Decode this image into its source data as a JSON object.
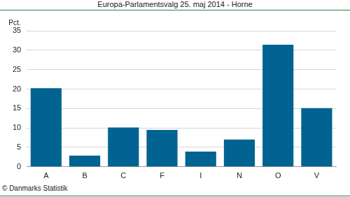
{
  "chart_data": {
    "type": "bar",
    "title": "Europa-Parlamentsvalg 25. maj 2014 - Horne",
    "y_label": "Pct.",
    "source": "© Danmarks Statistik",
    "categories": [
      "A",
      "B",
      "C",
      "F",
      "I",
      "N",
      "O",
      "V"
    ],
    "values": [
      20.2,
      2.9,
      10.1,
      9.5,
      3.9,
      7.0,
      31.4,
      15.1
    ],
    "color": "#006391",
    "ylim": [
      0,
      35
    ],
    "yticks": [
      0,
      5,
      10,
      15,
      20,
      25,
      30,
      35
    ],
    "grid": true
  }
}
